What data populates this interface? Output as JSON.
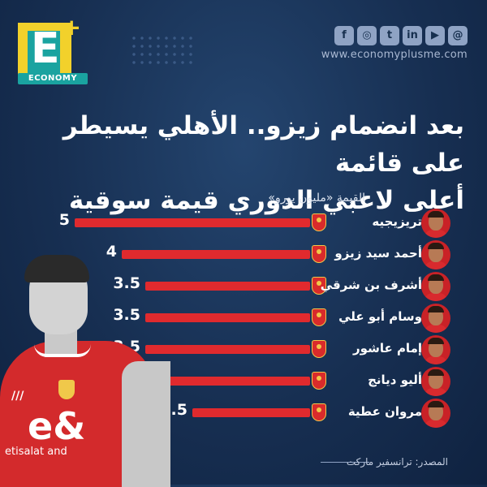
{
  "brand": {
    "letter": "E",
    "plus": "+",
    "name": "ECONOMY",
    "website": "www.economyplusme.com"
  },
  "social_icons": [
    {
      "name": "facebook-icon",
      "glyph": "f"
    },
    {
      "name": "instagram-icon",
      "glyph": "◎"
    },
    {
      "name": "twitter-icon",
      "glyph": "t"
    },
    {
      "name": "linkedin-icon",
      "glyph": "in"
    },
    {
      "name": "youtube-icon",
      "glyph": "▶"
    },
    {
      "name": "threads-icon",
      "glyph": "@"
    }
  ],
  "sponsor": {
    "logo": "e&",
    "name": "etisalat and"
  },
  "player_shirt": {
    "brand_stripes": "///"
  },
  "source": "المصدر: ترانسفير ماركت",
  "colors": {
    "bar": "#e02a2e",
    "background": "#172f52",
    "accent": "#1aa3a0"
  },
  "chart_data": {
    "type": "bar",
    "orientation": "horizontal",
    "title_line1": "بعد انضمام زيزو.. الأهلي يسيطر على قائمة",
    "title_line2": "أعلى لاعبي الدوري قيمة سوقية",
    "ylabel": "القيمة «مليون يورو»",
    "categories": [
      "تريزيجيه",
      "أحمد سيد زيزو",
      "أشرف بن شرقي",
      "وسام أبو علي",
      "إمام عاشور",
      "أليو ديانج",
      "مروان عطية"
    ],
    "values": [
      5,
      4,
      3.5,
      3.5,
      3.5,
      3,
      2.5
    ],
    "value_labels": [
      "5",
      "4",
      "3.5",
      "3.5",
      "3.5",
      "3",
      "2.5"
    ],
    "xlim": [
      0,
      5
    ],
    "grid": false
  }
}
